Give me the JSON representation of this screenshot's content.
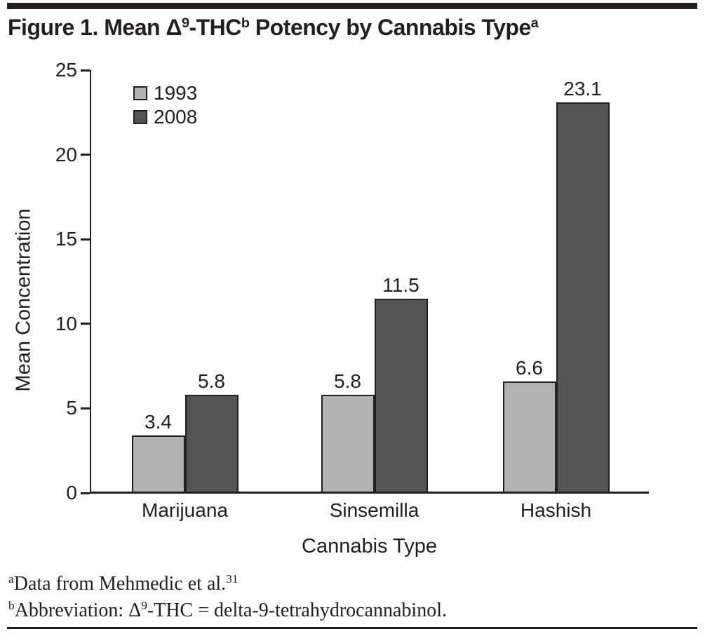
{
  "figure_title": {
    "part1": "Figure 1. Mean Δ",
    "sup1": "9",
    "part2": "-THC",
    "sup2": "b",
    "part3": " Potency by Cannabis Type",
    "sup3": "a"
  },
  "footnotes": {
    "a_sup": "a",
    "a_text": "Data from Mehmedic et al.",
    "a_ref": "31",
    "b_sup": "b",
    "b_text1": "Abbreviation: Δ",
    "b_sup9": "9",
    "b_text2": "-THC = delta-9-tetrahydrocannabinol."
  },
  "colors": {
    "series_1993": "#b3b3b3",
    "series_2008": "#545454",
    "axis_and_text": "#231f20",
    "background": "#ffffff"
  },
  "chart_data": {
    "type": "bar",
    "title": "Figure 1. Mean Δ9-THC Potency by Cannabis Type",
    "categories": [
      "Marijuana",
      "Sinsemilla",
      "Hashish"
    ],
    "series": [
      {
        "name": "1993",
        "values": [
          3.4,
          5.8,
          6.6
        ],
        "color": "#b3b3b3"
      },
      {
        "name": "2008",
        "values": [
          5.8,
          11.5,
          23.1
        ],
        "color": "#545454"
      }
    ],
    "value_labels_shown": true,
    "xlabel": "Cannabis Type",
    "ylabel": "Mean Concentration",
    "ylim": [
      0,
      25
    ],
    "yticks": [
      0,
      5,
      10,
      15,
      20,
      25
    ],
    "grid": false,
    "legend_position": "top-left",
    "bar_border_color": "#231f20"
  }
}
